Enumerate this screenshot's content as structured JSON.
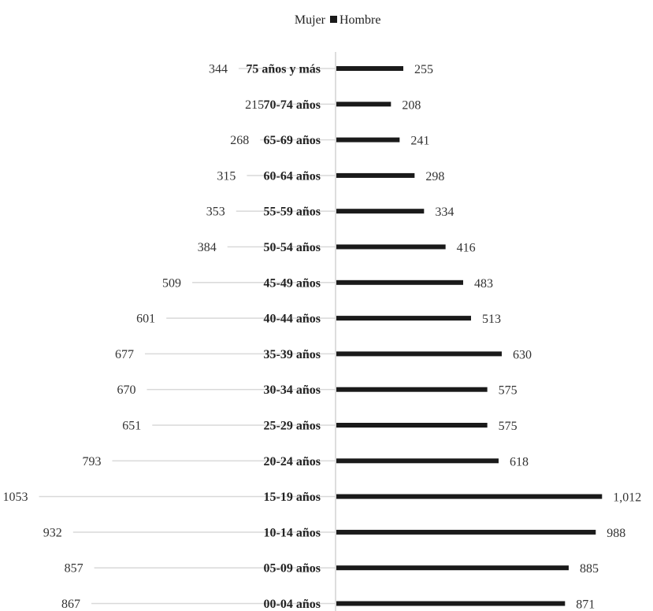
{
  "chart_data": {
    "type": "bar",
    "legend": [
      {
        "label": "Mujer",
        "color": "#d9d9d9"
      },
      {
        "label": "Hombre",
        "color": "#1a1a1a"
      }
    ],
    "legend_position": "top-center",
    "categories": [
      "75 años y más",
      "70-74 años",
      "65-69 años",
      "60-64 años",
      "55-59 años",
      "50-54 años",
      "45-49 años",
      "40-44 años",
      "35-39 años",
      "30-34 años",
      "25-29 años",
      "20-24 años",
      "15-19 años",
      "10-14 años",
      "05-09 años",
      "00-04 años"
    ],
    "series": [
      {
        "name": "Mujer",
        "values": [
          344,
          215,
          268,
          315,
          353,
          384,
          509,
          601,
          677,
          670,
          651,
          793,
          1053,
          932,
          857,
          867
        ],
        "labels": [
          "344",
          "215",
          "268",
          "315",
          "353",
          "384",
          "509",
          "601",
          "677",
          "670",
          "651",
          "793",
          "1053",
          "932",
          "857",
          "867"
        ],
        "color": "#d9d9d9"
      },
      {
        "name": "Hombre",
        "values": [
          255,
          208,
          241,
          298,
          334,
          416,
          483,
          513,
          630,
          575,
          575,
          618,
          1012,
          988,
          885,
          871
        ],
        "labels": [
          "255",
          "208",
          "241",
          "298",
          "334",
          "416",
          "483",
          "513",
          "630",
          "575",
          "575",
          "618",
          "1,012",
          "988",
          "885",
          "871"
        ],
        "color": "#1a1a1a"
      }
    ]
  }
}
